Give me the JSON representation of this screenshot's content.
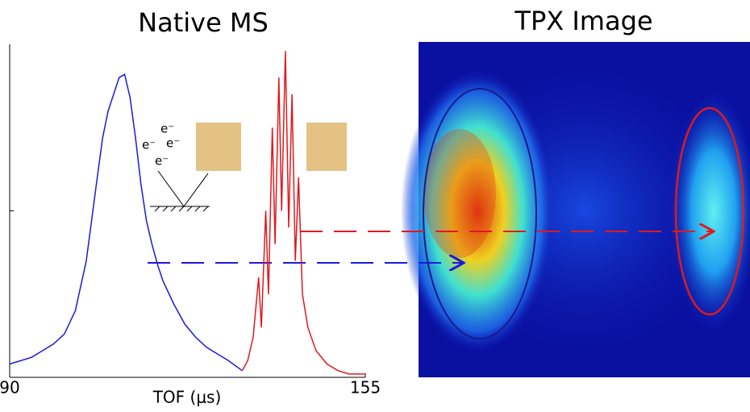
{
  "chart_data": {
    "type": "line",
    "title": "Native MS",
    "x_label": "TOF (μs)",
    "xlim": [
      90,
      155
    ],
    "xticks": [
      90,
      155
    ],
    "ylim": [
      0,
      1
    ],
    "yticks": [
      0.5
    ],
    "series": [
      {
        "color": "#1a1adc",
        "x": [
          90,
          92,
          94,
          96,
          98,
          100,
          102,
          104,
          106,
          107,
          108,
          109,
          110,
          111,
          112,
          113,
          114,
          115,
          116,
          117,
          118,
          120,
          122,
          124,
          126,
          128,
          130,
          132.5
        ],
        "values": [
          0.04,
          0.05,
          0.06,
          0.08,
          0.1,
          0.13,
          0.2,
          0.35,
          0.6,
          0.72,
          0.8,
          0.85,
          0.9,
          0.91,
          0.84,
          0.72,
          0.58,
          0.47,
          0.4,
          0.34,
          0.29,
          0.22,
          0.16,
          0.12,
          0.09,
          0.07,
          0.05,
          0.02
        ]
      },
      {
        "color": "#e0191e",
        "x": [
          132.5,
          133.5,
          134.5,
          135.5,
          136,
          136.8,
          137.3,
          138,
          138.5,
          139.2,
          139.7,
          140.4,
          141,
          141.6,
          142.2,
          142.8,
          143.5,
          144.5,
          146,
          148,
          150,
          152,
          155
        ],
        "values": [
          0.02,
          0.05,
          0.12,
          0.3,
          0.15,
          0.5,
          0.25,
          0.75,
          0.4,
          0.9,
          0.5,
          0.98,
          0.45,
          0.85,
          0.35,
          0.6,
          0.25,
          0.15,
          0.08,
          0.04,
          0.02,
          0.01,
          0.01
        ]
      }
    ],
    "annotations": [
      "e⁻",
      "e⁻",
      "e⁻",
      "e⁻"
    ]
  },
  "image": {
    "title": "TPX Image"
  }
}
